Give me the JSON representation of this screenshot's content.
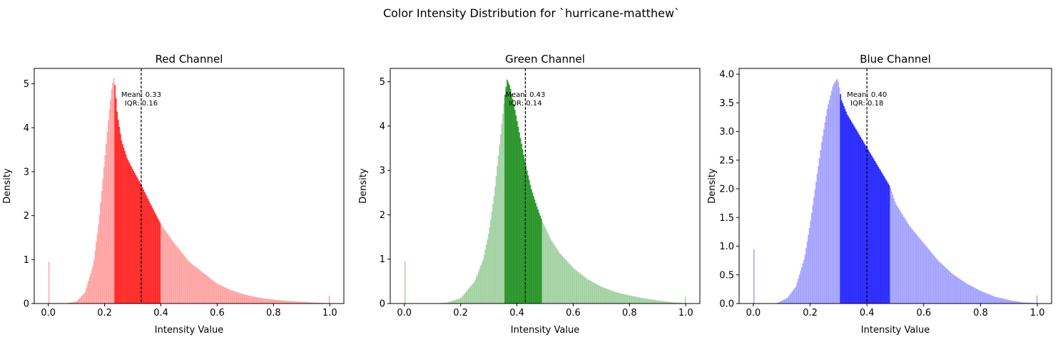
{
  "figure": {
    "title": "Color Intensity Distribution for `hurricane-matthew`"
  },
  "chart_data": [
    {
      "type": "histogram",
      "title": "Red Channel",
      "xlabel": "Intensity Value",
      "ylabel": "Density",
      "xlim": [
        -0.05,
        1.05
      ],
      "ylim": [
        0,
        5.35
      ],
      "xticks": [
        0.0,
        0.2,
        0.4,
        0.6,
        0.8,
        1.0
      ],
      "yticks": [
        0,
        1,
        2,
        3,
        4,
        5
      ],
      "color": "#ff0000",
      "mean": 0.33,
      "iqr": 0.16,
      "q1": 0.235,
      "q3": 0.398,
      "mean_label": "Mean: 0.33",
      "iqr_label": "IQR: 0.16",
      "density_x": [
        0.06,
        0.1,
        0.13,
        0.16,
        0.18,
        0.2,
        0.215,
        0.225,
        0.232,
        0.236,
        0.245,
        0.26,
        0.28,
        0.3,
        0.33,
        0.36,
        0.4,
        0.45,
        0.5,
        0.55,
        0.6,
        0.65,
        0.7,
        0.75,
        0.8,
        0.85,
        0.9,
        0.95,
        0.995
      ],
      "density_y": [
        0.0,
        0.05,
        0.25,
        0.9,
        1.9,
        3.3,
        4.3,
        4.9,
        5.15,
        5.0,
        4.3,
        3.7,
        3.3,
        3.05,
        2.7,
        2.3,
        1.8,
        1.35,
        0.95,
        0.7,
        0.45,
        0.3,
        0.2,
        0.13,
        0.09,
        0.06,
        0.04,
        0.02,
        0.01
      ],
      "spike_low": 0.95,
      "spike_high": 0.18
    },
    {
      "type": "histogram",
      "title": "Green Channel",
      "xlabel": "Intensity Value",
      "ylabel": "Density",
      "xlim": [
        -0.05,
        1.05
      ],
      "ylim": [
        0,
        5.3
      ],
      "xticks": [
        0.0,
        0.2,
        0.4,
        0.6,
        0.8,
        1.0
      ],
      "yticks": [
        0,
        1,
        2,
        3,
        4,
        5
      ],
      "color": "#008000",
      "mean": 0.43,
      "iqr": 0.14,
      "q1": 0.355,
      "q3": 0.49,
      "mean_label": "Mean: 0.43",
      "iqr_label": "IQR: 0.14",
      "density_x": [
        0.1,
        0.15,
        0.2,
        0.25,
        0.28,
        0.3,
        0.32,
        0.34,
        0.355,
        0.365,
        0.375,
        0.39,
        0.41,
        0.43,
        0.45,
        0.47,
        0.49,
        0.52,
        0.55,
        0.6,
        0.65,
        0.7,
        0.75,
        0.8,
        0.85,
        0.9,
        0.95,
        0.995
      ],
      "density_y": [
        0.0,
        0.02,
        0.12,
        0.5,
        1.0,
        1.6,
        2.5,
        3.7,
        4.6,
        5.05,
        4.9,
        4.45,
        3.8,
        3.15,
        2.6,
        2.2,
        1.85,
        1.45,
        1.15,
        0.8,
        0.55,
        0.38,
        0.26,
        0.18,
        0.12,
        0.07,
        0.03,
        0.01
      ],
      "spike_low": 0.95,
      "spike_high": 0.15
    },
    {
      "type": "histogram",
      "title": "Blue Channel",
      "xlabel": "Intensity Value",
      "ylabel": "Density",
      "xlim": [
        -0.05,
        1.05
      ],
      "ylim": [
        0,
        4.1
      ],
      "xticks": [
        0.0,
        0.2,
        0.4,
        0.6,
        0.8,
        1.0
      ],
      "yticks": [
        0.0,
        0.5,
        1.0,
        1.5,
        2.0,
        2.5,
        3.0,
        3.5,
        4.0
      ],
      "color": "#0000ff",
      "mean": 0.4,
      "iqr": 0.18,
      "q1": 0.303,
      "q3": 0.482,
      "mean_label": "Mean: 0.40",
      "iqr_label": "IQR: 0.18",
      "density_x": [
        0.08,
        0.12,
        0.15,
        0.18,
        0.2,
        0.22,
        0.24,
        0.26,
        0.28,
        0.295,
        0.3,
        0.31,
        0.33,
        0.36,
        0.39,
        0.42,
        0.45,
        0.48,
        0.5,
        0.55,
        0.6,
        0.65,
        0.7,
        0.75,
        0.8,
        0.85,
        0.9,
        0.95,
        0.995
      ],
      "density_y": [
        0.0,
        0.1,
        0.3,
        0.8,
        1.4,
        2.1,
        2.8,
        3.4,
        3.8,
        3.92,
        3.85,
        3.55,
        3.3,
        3.05,
        2.8,
        2.55,
        2.3,
        2.05,
        1.75,
        1.35,
        1.05,
        0.75,
        0.52,
        0.35,
        0.22,
        0.12,
        0.06,
        0.02,
        0.01
      ],
      "spike_low": 0.95,
      "spike_high": 0.14
    }
  ]
}
